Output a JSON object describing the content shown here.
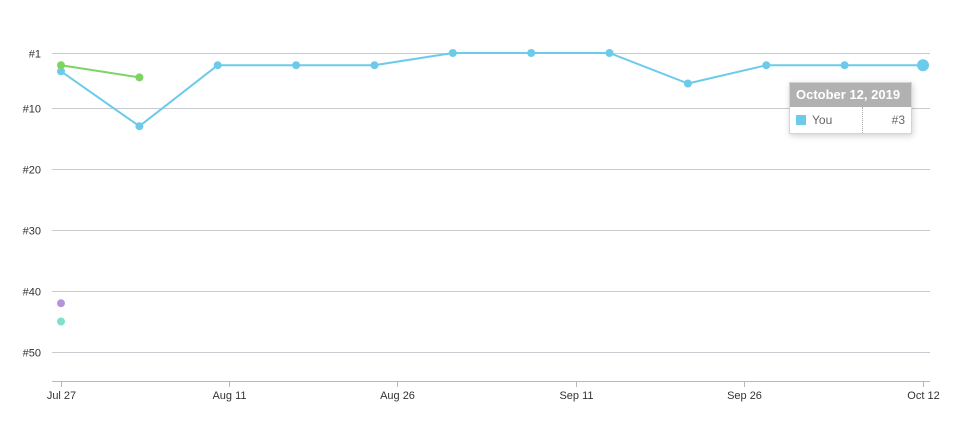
{
  "chart_data": {
    "type": "line",
    "title": "",
    "xlabel": "",
    "ylabel": "",
    "y_axis": {
      "reversed": true,
      "range": [
        1,
        55
      ],
      "ticks": [
        1,
        10,
        20,
        30,
        40,
        50
      ],
      "tick_labels": [
        "#1",
        "#10",
        "#20",
        "#30",
        "#40",
        "#50"
      ]
    },
    "x_axis": {
      "range": [
        "2019-07-27",
        "2019-10-12"
      ],
      "ticks": [
        "2019-07-27",
        "2019-08-11",
        "2019-08-26",
        "2019-09-11",
        "2019-09-26",
        "2019-10-12"
      ],
      "tick_labels": [
        "Jul 27",
        "Aug 11",
        "Aug 26",
        "Sep 11",
        "Sep 26",
        "Oct 12"
      ]
    },
    "grid": true,
    "series": [
      {
        "name": "You",
        "color": "#6ccbea",
        "x": [
          "2019-07-27",
          "2019-08-03",
          "2019-08-10",
          "2019-08-17",
          "2019-08-24",
          "2019-08-31",
          "2019-09-07",
          "2019-09-14",
          "2019-09-21",
          "2019-09-28",
          "2019-10-05",
          "2019-10-12"
        ],
        "y": [
          4,
          13,
          3,
          3,
          3,
          1,
          1,
          1,
          6,
          3,
          3,
          3
        ]
      },
      {
        "color": "#7fd365",
        "x": [
          "2019-07-27",
          "2019-08-03"
        ],
        "y": [
          3,
          5
        ]
      },
      {
        "color": "#b295dd",
        "x": [
          "2019-07-27"
        ],
        "y": [
          42
        ]
      },
      {
        "color": "#7fe0d0",
        "x": [
          "2019-07-27"
        ],
        "y": [
          45
        ]
      }
    ],
    "highlighted_point": {
      "series": "You",
      "x": "2019-10-12",
      "y": 3
    }
  },
  "tooltip": {
    "date": "October 12, 2019",
    "series_name": "You",
    "value": "#3",
    "color": "#6ccbea"
  }
}
